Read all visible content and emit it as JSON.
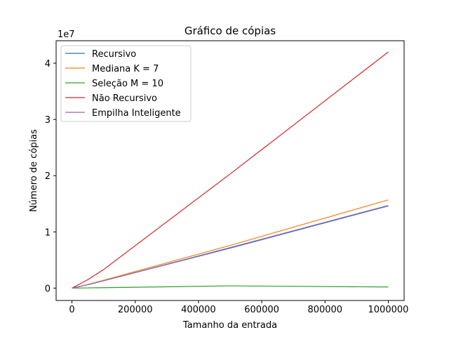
{
  "chart_data": {
    "type": "line",
    "title": "Gráfico de cópias",
    "xlabel": "Tamanho da entrada",
    "ylabel": "Número de cópias",
    "y_offset_label": "1e7",
    "xlim": [
      -50000,
      1050000
    ],
    "ylim": [
      -2200000,
      44000000
    ],
    "x_ticks": [
      0,
      200000,
      400000,
      600000,
      800000,
      1000000
    ],
    "x_tick_labels": [
      "0",
      "200000",
      "400000",
      "600000",
      "800000",
      "1000000"
    ],
    "y_ticks": [
      0,
      10000000,
      20000000,
      30000000,
      40000000
    ],
    "y_tick_labels": [
      "0",
      "1",
      "2",
      "3",
      "4"
    ],
    "grid": false,
    "legend_position": "top-left",
    "x": [
      0,
      50000,
      100000,
      500000,
      1000000
    ],
    "series": [
      {
        "name": "Recursivo",
        "color": "#1f77b4",
        "values": [
          0,
          600000,
          1300000,
          7200000,
          14700000
        ]
      },
      {
        "name": "Mediana K = 7",
        "color": "#ff7f0e",
        "values": [
          0,
          650000,
          1400000,
          7600000,
          15700000
        ]
      },
      {
        "name": "Seleção M = 10",
        "color": "#2ca02c",
        "values": [
          0,
          40000,
          80000,
          400000,
          200000
        ]
      },
      {
        "name": "Não Recursivo",
        "color": "#d62728",
        "values": [
          0,
          1500000,
          3300000,
          20300000,
          42000000
        ]
      },
      {
        "name": "Empilha Inteligente",
        "color": "#9467bd",
        "values": [
          0,
          600000,
          1300000,
          7100000,
          14600000
        ]
      }
    ]
  }
}
